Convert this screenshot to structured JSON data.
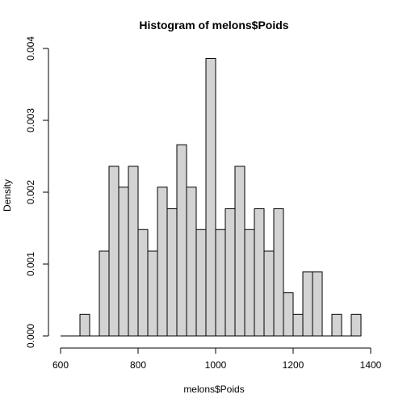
{
  "chart_data": {
    "type": "bar",
    "title": "Histogram of melons$Poids",
    "xlabel": "melons$Poids",
    "ylabel": "Density",
    "xlim": [
      600,
      1400
    ],
    "ylim": [
      0,
      0.004
    ],
    "x_ticks": [
      600,
      800,
      1000,
      1200,
      1400
    ],
    "y_ticks": [
      0.0,
      0.001,
      0.002,
      0.003,
      0.004
    ],
    "x_tick_labels": [
      "600",
      "800",
      "1000",
      "1200",
      "1400"
    ],
    "y_tick_labels": [
      "0.000",
      "0.001",
      "0.002",
      "0.003",
      "0.004"
    ],
    "bin_width": 25,
    "baseline_range": [
      600,
      1375
    ],
    "bins": [
      {
        "start": 650,
        "end": 675,
        "density": 0.0003
      },
      {
        "start": 700,
        "end": 725,
        "density": 0.00118
      },
      {
        "start": 725,
        "end": 750,
        "density": 0.00236
      },
      {
        "start": 750,
        "end": 775,
        "density": 0.00207
      },
      {
        "start": 775,
        "end": 800,
        "density": 0.00236
      },
      {
        "start": 800,
        "end": 825,
        "density": 0.00148
      },
      {
        "start": 825,
        "end": 850,
        "density": 0.00118
      },
      {
        "start": 850,
        "end": 875,
        "density": 0.00207
      },
      {
        "start": 875,
        "end": 900,
        "density": 0.00177
      },
      {
        "start": 900,
        "end": 925,
        "density": 0.00266
      },
      {
        "start": 925,
        "end": 950,
        "density": 0.00207
      },
      {
        "start": 950,
        "end": 975,
        "density": 0.00148
      },
      {
        "start": 975,
        "end": 1000,
        "density": 0.00386
      },
      {
        "start": 1000,
        "end": 1025,
        "density": 0.00148
      },
      {
        "start": 1025,
        "end": 1050,
        "density": 0.00177
      },
      {
        "start": 1050,
        "end": 1075,
        "density": 0.00236
      },
      {
        "start": 1075,
        "end": 1100,
        "density": 0.00148
      },
      {
        "start": 1100,
        "end": 1125,
        "density": 0.00177
      },
      {
        "start": 1125,
        "end": 1150,
        "density": 0.00118
      },
      {
        "start": 1150,
        "end": 1175,
        "density": 0.00177
      },
      {
        "start": 1175,
        "end": 1200,
        "density": 0.0006
      },
      {
        "start": 1200,
        "end": 1225,
        "density": 0.0003
      },
      {
        "start": 1225,
        "end": 1250,
        "density": 0.00089
      },
      {
        "start": 1250,
        "end": 1275,
        "density": 0.00089
      },
      {
        "start": 1300,
        "end": 1325,
        "density": 0.0003
      },
      {
        "start": 1350,
        "end": 1375,
        "density": 0.0003
      }
    ],
    "bar_color": "#d3d3d3",
    "edge_color": "#000000",
    "grid": false,
    "legend": "none"
  }
}
